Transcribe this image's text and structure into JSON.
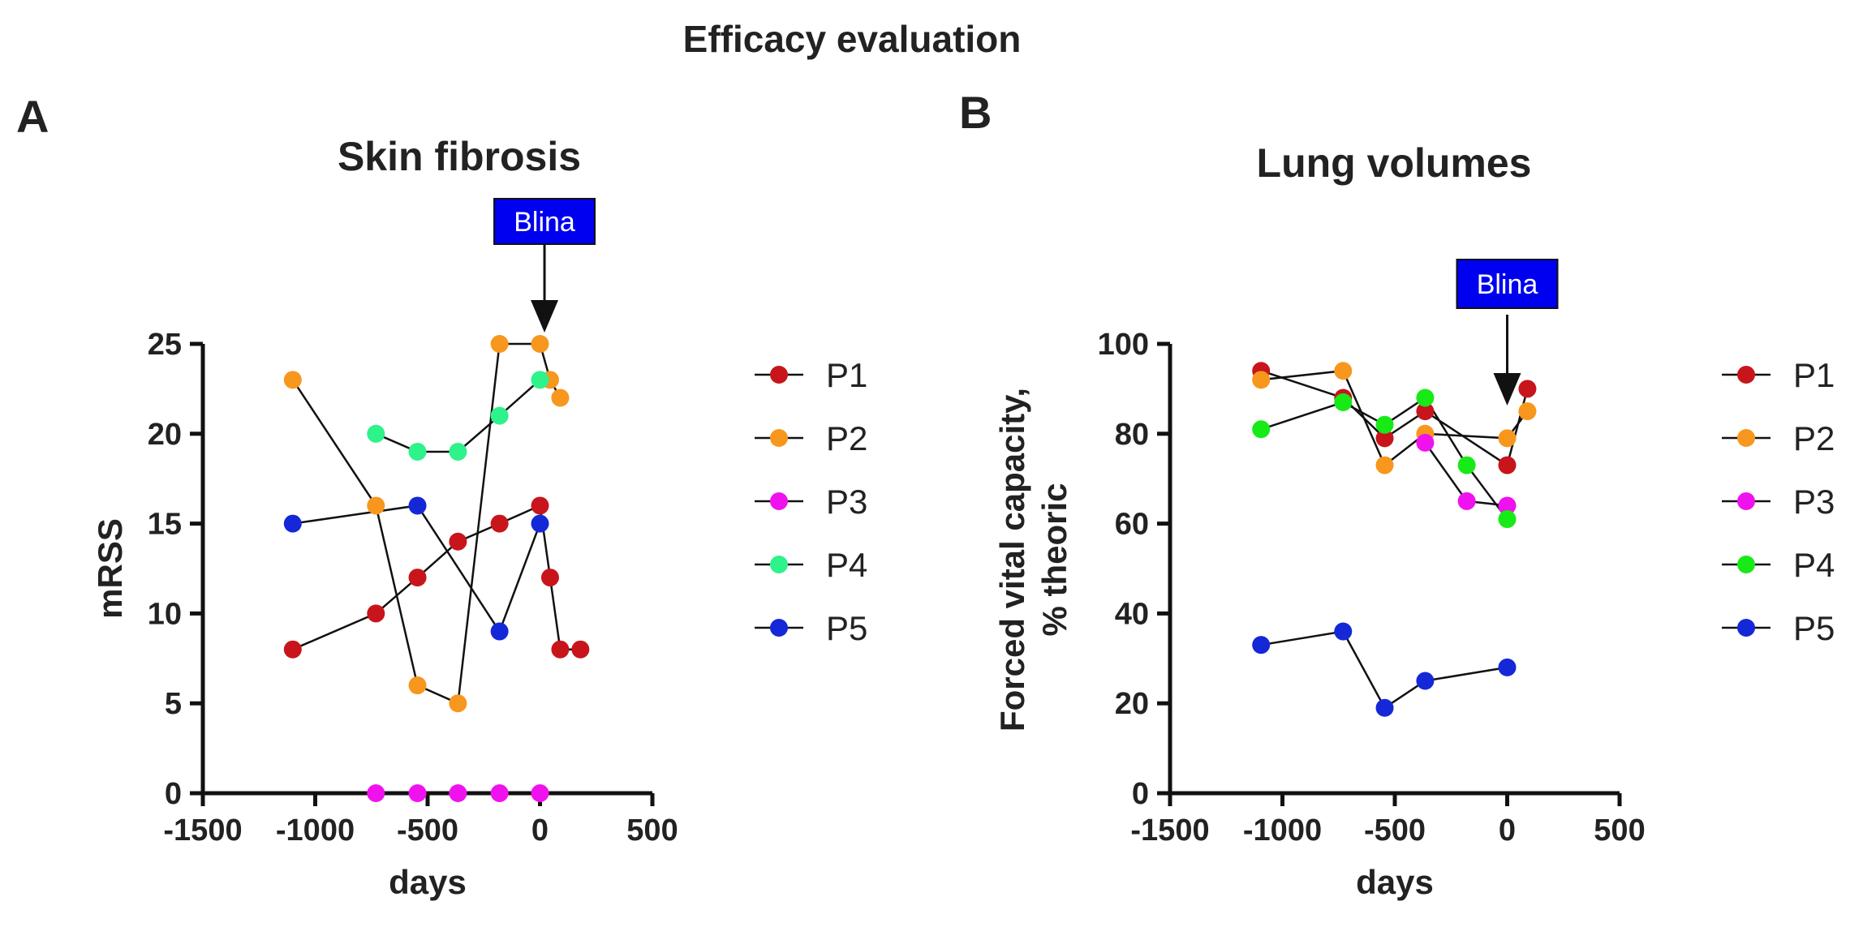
{
  "figure": {
    "title": "Efficacy evaluation"
  },
  "colors": {
    "P1": "#c8151b",
    "P2": "#f7971e",
    "P3": "#f012ee",
    "P4A": "#2ef28a",
    "P4B": "#18ea18",
    "P5": "#1428d8",
    "annotation_box": "#0000f0",
    "line": "#111111"
  },
  "chart_data": [
    {
      "panel": "A",
      "type": "line",
      "title": "Skin fibrosis",
      "xlabel": "days",
      "ylabel": "mRSS",
      "xlim": [
        -1500,
        500
      ],
      "ylim": [
        0,
        25
      ],
      "xticks": [
        "-1500",
        "-1000",
        "-500",
        "0",
        "500"
      ],
      "yticks": [
        "0",
        "5",
        "10",
        "15",
        "20",
        "25"
      ],
      "grid": false,
      "legend_position": "right",
      "annotation": {
        "text": "Blina",
        "x": 20
      },
      "series": [
        {
          "name": "P1",
          "color": "#c8151b",
          "points": [
            [
              -1100,
              8
            ],
            [
              -730,
              10
            ],
            [
              -545,
              12
            ],
            [
              -365,
              14
            ],
            [
              -180,
              15
            ],
            [
              0,
              16
            ],
            [
              45,
              12
            ],
            [
              90,
              8
            ],
            [
              180,
              8
            ]
          ]
        },
        {
          "name": "P2",
          "color": "#f7971e",
          "points": [
            [
              -1100,
              23
            ],
            [
              -730,
              16
            ],
            [
              -545,
              6
            ],
            [
              -365,
              5
            ],
            [
              -180,
              25
            ],
            [
              0,
              25
            ],
            [
              45,
              23
            ],
            [
              90,
              22
            ]
          ]
        },
        {
          "name": "P3",
          "color": "#f012ee",
          "points": [
            [
              -730,
              0
            ],
            [
              -545,
              0
            ],
            [
              -365,
              0
            ],
            [
              -180,
              0
            ],
            [
              0,
              0
            ]
          ]
        },
        {
          "name": "P4",
          "color": "#2ef28a",
          "points": [
            [
              -730,
              20
            ],
            [
              -545,
              19
            ],
            [
              -365,
              19
            ],
            [
              -180,
              21
            ],
            [
              0,
              23
            ]
          ]
        },
        {
          "name": "P5",
          "color": "#1428d8",
          "points": [
            [
              -1100,
              15
            ],
            [
              -545,
              16
            ],
            [
              -180,
              9
            ],
            [
              0,
              15
            ]
          ]
        }
      ]
    },
    {
      "panel": "B",
      "type": "line",
      "title": "Lung volumes",
      "xlabel": "days",
      "ylabel": "Forced vital capacity,\n% theoric",
      "ylabel_lines": [
        "Forced vital capacity,",
        "% theoric"
      ],
      "xlim": [
        -1500,
        500
      ],
      "ylim": [
        0,
        100
      ],
      "xticks": [
        "-1500",
        "-1000",
        "-500",
        "0",
        "500"
      ],
      "yticks": [
        "0",
        "20",
        "40",
        "60",
        "80",
        "100"
      ],
      "grid": false,
      "legend_position": "right",
      "annotation": {
        "text": "Blina",
        "x": 0
      },
      "series": [
        {
          "name": "P1",
          "color": "#c8151b",
          "points": [
            [
              -1095,
              94
            ],
            [
              -730,
              88
            ],
            [
              -545,
              79
            ],
            [
              -365,
              85
            ],
            [
              0,
              73
            ],
            [
              90,
              90
            ]
          ]
        },
        {
          "name": "P2",
          "color": "#f7971e",
          "points": [
            [
              -1095,
              92
            ],
            [
              -730,
              94
            ],
            [
              -545,
              73
            ],
            [
              -365,
              80
            ],
            [
              0,
              79
            ],
            [
              90,
              85
            ]
          ]
        },
        {
          "name": "P3",
          "color": "#f012ee",
          "points": [
            [
              -365,
              78
            ],
            [
              -180,
              65
            ],
            [
              0,
              64
            ]
          ]
        },
        {
          "name": "P4",
          "color": "#18ea18",
          "points": [
            [
              -1095,
              81
            ],
            [
              -730,
              87
            ],
            [
              -545,
              82
            ],
            [
              -365,
              88
            ],
            [
              -180,
              73
            ],
            [
              0,
              61
            ]
          ]
        },
        {
          "name": "P5",
          "color": "#1428d8",
          "points": [
            [
              -1095,
              33
            ],
            [
              -730,
              36
            ],
            [
              -545,
              19
            ],
            [
              -365,
              25
            ],
            [
              0,
              28
            ]
          ]
        }
      ]
    }
  ]
}
